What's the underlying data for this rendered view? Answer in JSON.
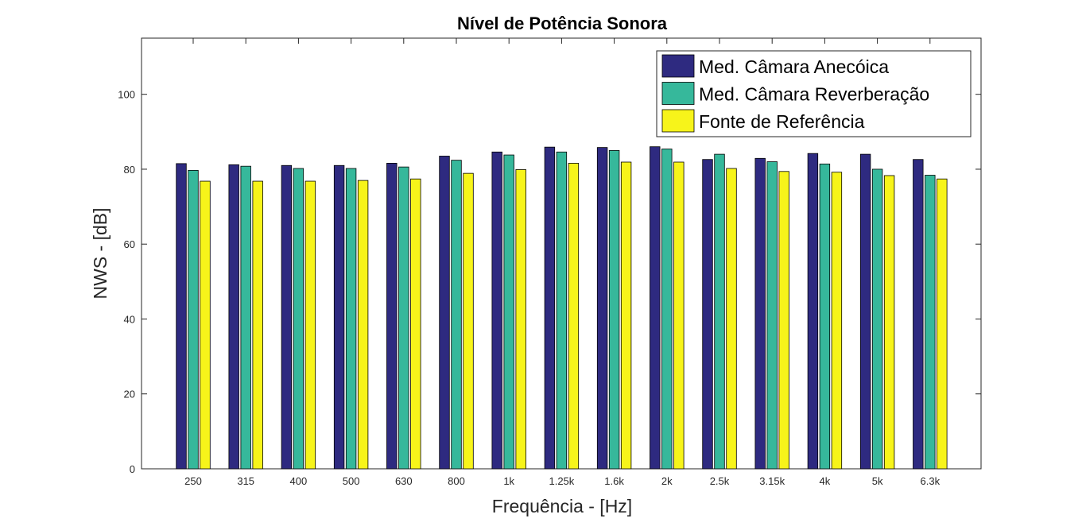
{
  "chart_data": {
    "type": "bar",
    "title": "Nível de Potência Sonora",
    "xlabel": "Frequência - [Hz]",
    "ylabel": "NWS - [dB]",
    "ylim": [
      0,
      115
    ],
    "yticks": [
      0,
      20,
      40,
      60,
      80,
      100
    ],
    "grid": false,
    "legend_position": "top-right",
    "categories": [
      "250",
      "315",
      "400",
      "500",
      "630",
      "800",
      "1k",
      "1.25k",
      "1.6k",
      "2k",
      "2.5k",
      "3.15k",
      "4k",
      "5k",
      "6.3k"
    ],
    "series": [
      {
        "name": "Med. Câmara Anecóica",
        "color": "#2e2a80",
        "values": [
          81.5,
          81.2,
          81.0,
          81.0,
          81.6,
          83.5,
          84.6,
          85.9,
          85.8,
          86.0,
          82.6,
          82.9,
          84.2,
          84.0,
          82.6
        ]
      },
      {
        "name": "Med. Câmara Reverberação",
        "color": "#36b89b",
        "values": [
          79.7,
          80.8,
          80.2,
          80.2,
          80.6,
          82.4,
          83.8,
          84.6,
          85.0,
          85.4,
          84.0,
          82.0,
          81.4,
          80.0,
          78.4
        ]
      },
      {
        "name": "Fonte de Referência",
        "color": "#f7f41a",
        "values": [
          76.8,
          76.8,
          76.8,
          77.0,
          77.4,
          78.9,
          79.9,
          81.6,
          81.9,
          81.9,
          80.2,
          79.4,
          79.2,
          78.3,
          77.4
        ]
      }
    ]
  }
}
